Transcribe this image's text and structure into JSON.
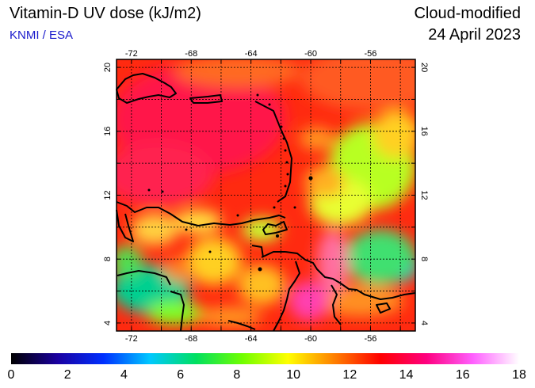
{
  "header": {
    "title": "Vitamin-D UV dose (kJ/m2)",
    "credit": "KNMI / ESA",
    "mode": "Cloud-modified",
    "date": "24 April 2023"
  },
  "map": {
    "lon_range": [
      -73,
      -53
    ],
    "lat_range": [
      3.5,
      20.5
    ],
    "lon_ticks": [
      "-72",
      "-68",
      "-64",
      "-60",
      "-56"
    ],
    "lat_ticks": [
      "20",
      "16",
      "12",
      "8",
      "4"
    ],
    "gridlines": true
  },
  "colorbar": {
    "labels": [
      "0",
      "2",
      "4",
      "6",
      "8",
      "10",
      "12",
      "14",
      "16",
      "18"
    ],
    "stops": [
      "#000000",
      "#1a00a0",
      "#0030ff",
      "#00c8ff",
      "#00e060",
      "#70ff00",
      "#ffff00",
      "#ff8000",
      "#ff0000",
      "#ff0080",
      "#ff60ff",
      "#ffffff"
    ]
  }
}
